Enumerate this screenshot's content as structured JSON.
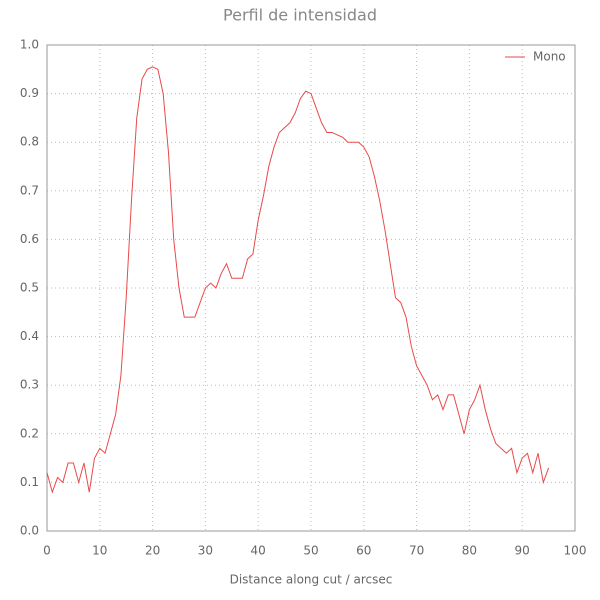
{
  "chart_data": {
    "type": "line",
    "title": "Perfil de intensidad",
    "x_label": "Distance along cut / arcsec",
    "x": [
      0,
      1,
      2,
      3,
      4,
      5,
      6,
      7,
      8,
      9,
      10,
      11,
      12,
      13,
      14,
      15,
      16,
      17,
      18,
      19,
      20,
      21,
      22,
      23,
      24,
      25,
      26,
      27,
      28,
      29,
      30,
      31,
      32,
      33,
      34,
      35,
      36,
      37,
      38,
      39,
      40,
      41,
      42,
      43,
      44,
      45,
      46,
      47,
      48,
      49,
      50,
      51,
      52,
      53,
      54,
      55,
      56,
      57,
      58,
      59,
      60,
      61,
      62,
      63,
      64,
      65,
      66,
      67,
      68,
      69,
      70,
      71,
      72,
      73,
      74,
      75,
      76,
      77,
      78,
      79,
      80,
      81,
      82,
      83,
      84,
      85,
      86,
      87,
      88,
      89,
      90,
      91,
      92,
      93,
      94,
      95
    ],
    "series": [
      {
        "name": "Mono",
        "color": "#e84a4a",
        "values": [
          0.12,
          0.08,
          0.11,
          0.1,
          0.14,
          0.14,
          0.1,
          0.14,
          0.08,
          0.15,
          0.17,
          0.16,
          0.2,
          0.24,
          0.32,
          0.48,
          0.68,
          0.85,
          0.93,
          0.95,
          0.955,
          0.95,
          0.9,
          0.78,
          0.6,
          0.5,
          0.44,
          0.44,
          0.44,
          0.47,
          0.5,
          0.51,
          0.5,
          0.53,
          0.55,
          0.52,
          0.52,
          0.52,
          0.56,
          0.57,
          0.64,
          0.69,
          0.75,
          0.79,
          0.82,
          0.83,
          0.84,
          0.86,
          0.89,
          0.905,
          0.9,
          0.87,
          0.84,
          0.82,
          0.82,
          0.815,
          0.81,
          0.8,
          0.8,
          0.8,
          0.79,
          0.77,
          0.73,
          0.68,
          0.62,
          0.55,
          0.48,
          0.47,
          0.44,
          0.38,
          0.34,
          0.32,
          0.3,
          0.27,
          0.28,
          0.25,
          0.28,
          0.28,
          0.24,
          0.2,
          0.25,
          0.27,
          0.3,
          0.25,
          0.21,
          0.18,
          0.17,
          0.16,
          0.17,
          0.12,
          0.15,
          0.16,
          0.12,
          0.16,
          0.1,
          0.13
        ]
      }
    ],
    "xlim": [
      0,
      100
    ],
    "xticks": [
      0,
      10,
      20,
      30,
      40,
      50,
      60,
      70,
      80,
      90,
      100
    ],
    "ylim": [
      0,
      1
    ],
    "yticks": [
      {
        "value": 0,
        "label": "0.0"
      },
      0.1,
      0.2,
      0.3,
      0.4,
      0.5,
      0.6,
      0.7,
      0.8,
      0.9,
      {
        "value": 1,
        "label": "1.0"
      }
    ],
    "grid": true,
    "legend": "upper right"
  }
}
